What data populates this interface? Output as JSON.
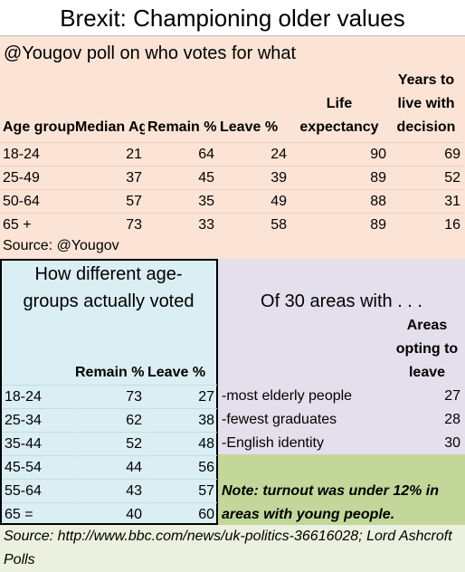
{
  "header": {
    "title": "Brexit: Championing older values"
  },
  "poll": {
    "subtitle": "@Yougov poll on who votes for what",
    "columns": [
      "Age group",
      "Median Age",
      "Remain %",
      "Leave %",
      "Life expectancy",
      "Years to live with decision"
    ],
    "rows": [
      [
        "18-24",
        21,
        64,
        24,
        90,
        69
      ],
      [
        "25-49",
        37,
        45,
        39,
        89,
        52
      ],
      [
        "50-64",
        57,
        35,
        49,
        88,
        31
      ],
      [
        "65 +",
        73,
        33,
        58,
        89,
        16
      ]
    ],
    "source": "Source: @Yougov"
  },
  "voted": {
    "title": "How different age-groups actually voted",
    "columns": [
      "Remain %",
      "Leave %"
    ],
    "rows": [
      [
        "18-24",
        73,
        27
      ],
      [
        "25-34",
        62,
        38
      ],
      [
        "35-44",
        52,
        48
      ],
      [
        "45-54",
        44,
        56
      ],
      [
        "55-64",
        43,
        57
      ],
      [
        "65 =",
        40,
        60
      ]
    ]
  },
  "areas": {
    "title": "Of 30 areas with . . .",
    "column": "Areas opting to leave",
    "rows": [
      [
        "-most elderly people",
        27
      ],
      [
        "-fewest graduates",
        28
      ],
      [
        "-English identity",
        30
      ]
    ]
  },
  "note": "Note: turnout was under 12% in areas with young people.",
  "source": "Source: http://www.bbc.com/news/uk-politics-36616028; Lord Ashcroft Polls"
}
